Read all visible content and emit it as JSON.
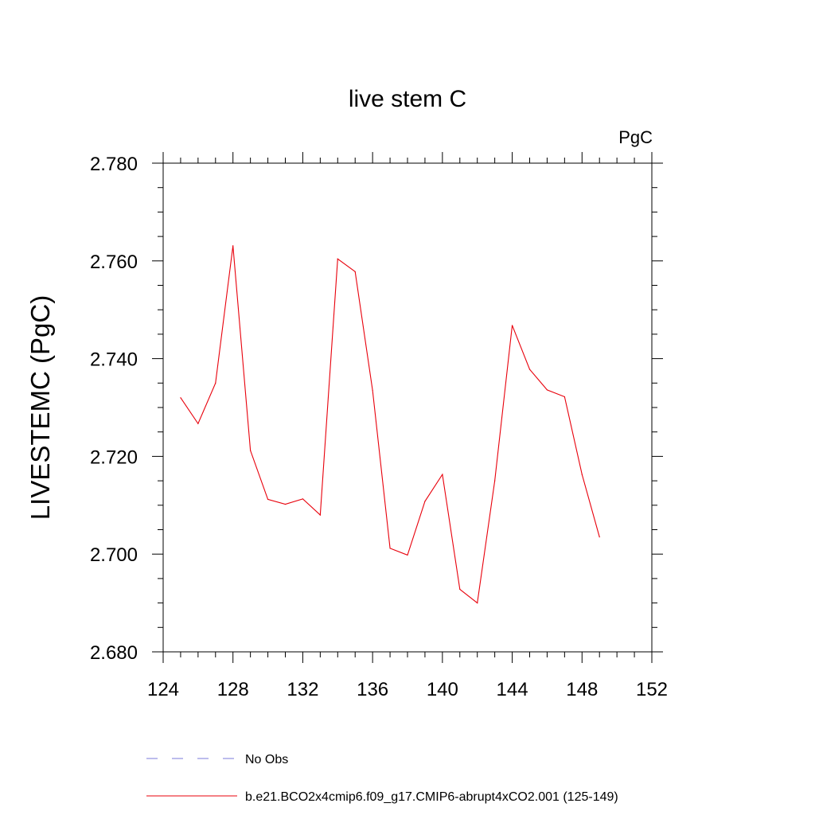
{
  "chart_data": {
    "type": "line",
    "title": "live stem C",
    "units_label": "PgC",
    "xlabel": "",
    "ylabel": "LIVESTEMC  (PgC)",
    "xlim": [
      124,
      152
    ],
    "ylim": [
      2.68,
      2.78
    ],
    "x_ticks": [
      "124",
      "128",
      "132",
      "136",
      "140",
      "144",
      "148",
      "152"
    ],
    "y_ticks": [
      "2.680",
      "2.700",
      "2.720",
      "2.740",
      "2.760",
      "2.780"
    ],
    "grid": false,
    "legend_position": "bottom",
    "legend": [
      {
        "label": "No Obs",
        "color": "#7b7bdb",
        "dashed": true
      },
      {
        "label": "b.e21.BCO2x4cmip6.f09_g17.CMIP6-abrupt4xCO2.001 (125-149)",
        "color": "#e8000b",
        "dashed": false
      }
    ],
    "series": [
      {
        "name": "b.e21.BCO2x4cmip6.f09_g17.CMIP6-abrupt4xCO2.001 (125-149)",
        "color": "#e8000b",
        "x": [
          125,
          126,
          127,
          128,
          129,
          130,
          131,
          132,
          133,
          134,
          135,
          136,
          137,
          138,
          139,
          140,
          141,
          142,
          143,
          144,
          145,
          146,
          147,
          148,
          149
        ],
        "y": [
          2.732,
          2.7267,
          2.735,
          2.7631,
          2.7212,
          2.7112,
          2.7102,
          2.7113,
          2.708,
          2.7604,
          2.7578,
          2.7335,
          2.7012,
          2.6998,
          2.7108,
          2.7163,
          2.6928,
          2.69,
          2.715,
          2.7468,
          2.7378,
          2.7336,
          2.7322,
          2.7163,
          2.7035
        ]
      }
    ]
  }
}
